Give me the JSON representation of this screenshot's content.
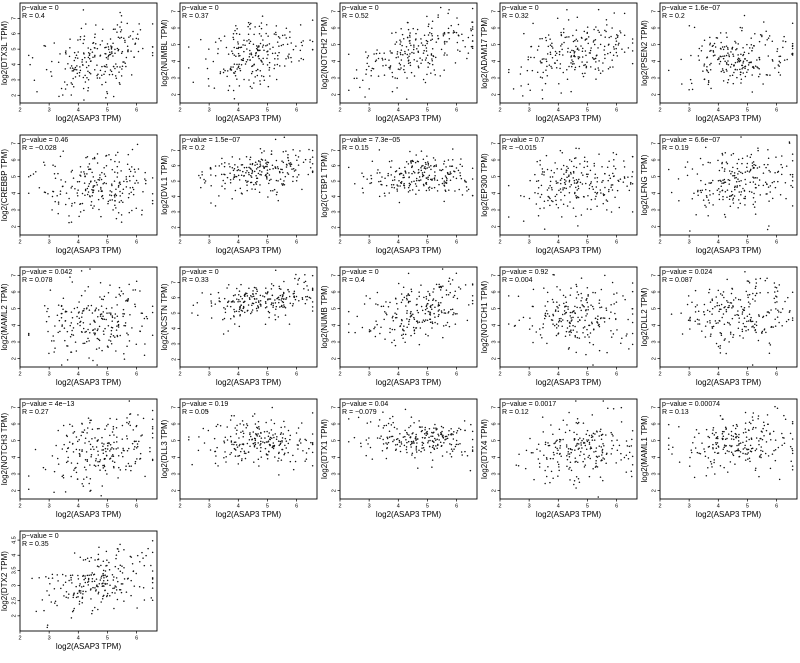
{
  "x_label": "log2(ASAP3 TPM)",
  "x_ticks": [
    "2",
    "3",
    "4",
    "5",
    "6"
  ],
  "chart_data": [
    {
      "type": "scatter",
      "ylabel": "log2(DTX3L TPM)",
      "p_value": "p−value = 0",
      "r": "R = 0.4",
      "coef": 0.4,
      "xlim": [
        2,
        6.7
      ],
      "ylim": [
        1.5,
        8
      ],
      "y_ticks": [
        "2",
        "3",
        "4",
        "5",
        "6",
        "7"
      ],
      "y_center": 4.5,
      "y_sd": 1.2
    },
    {
      "type": "scatter",
      "ylabel": "log2(NUMBL TPM)",
      "p_value": "p−value = 0",
      "r": "R = 0.37",
      "coef": 0.37,
      "xlim": [
        2,
        6.7
      ],
      "ylim": [
        1.5,
        7.5
      ],
      "y_ticks": [
        "2",
        "3",
        "4",
        "5",
        "6",
        "7"
      ],
      "y_center": 4.5,
      "y_sd": 1.0
    },
    {
      "type": "scatter",
      "ylabel": "log2(NOTCH2 TPM)",
      "p_value": "p−value = 0",
      "r": "R = 0.52",
      "coef": 0.52,
      "xlim": [
        2,
        6.7
      ],
      "ylim": [
        1.5,
        7.5
      ],
      "y_ticks": [
        "2",
        "3",
        "4",
        "5",
        "6",
        "7"
      ],
      "y_center": 4.6,
      "y_sd": 1.1
    },
    {
      "type": "scatter",
      "ylabel": "log2(ADAM17 TPM)",
      "p_value": "p−value = 0",
      "r": "R = 0.32",
      "coef": 0.32,
      "xlim": [
        2,
        6.7
      ],
      "ylim": [
        1.5,
        7.5
      ],
      "y_ticks": [
        "2",
        "3",
        "4",
        "5",
        "6",
        "7"
      ],
      "y_center": 4.7,
      "y_sd": 1.0
    },
    {
      "type": "scatter",
      "ylabel": "log2(PSEN2 TPM)",
      "p_value": "p−value = 1.6e−07",
      "r": "R = 0.2",
      "coef": 0.2,
      "xlim": [
        2,
        6.7
      ],
      "ylim": [
        1.5,
        7.5
      ],
      "y_ticks": [
        "2",
        "3",
        "4",
        "5",
        "6",
        "7"
      ],
      "y_center": 4.2,
      "y_sd": 0.9
    },
    {
      "type": "scatter",
      "ylabel": "log2(CREBBP TPM)",
      "p_value": "p−value = 0.46",
      "r": "R = −0.028",
      "coef": -0.028,
      "xlim": [
        2,
        6.7
      ],
      "ylim": [
        1.5,
        7.5
      ],
      "y_ticks": [
        "2",
        "3",
        "4",
        "5",
        "6",
        "7"
      ],
      "y_center": 4.4,
      "y_sd": 1.0
    },
    {
      "type": "scatter",
      "ylabel": "log2(DVL1 TPM)",
      "p_value": "p−value = 1.5e−07",
      "r": "R = 0.2",
      "coef": 0.2,
      "xlim": [
        2,
        6.7
      ],
      "ylim": [
        1.5,
        8
      ],
      "y_ticks": [
        "2",
        "3",
        "4",
        "5",
        "6",
        "7"
      ],
      "y_center": 5.6,
      "y_sd": 0.7
    },
    {
      "type": "scatter",
      "ylabel": "log2(CTBP1 TPM)",
      "p_value": "p−value = 7.3e−05",
      "r": "R = 0.15",
      "coef": 0.15,
      "xlim": [
        2,
        6.7
      ],
      "ylim": [
        1.5,
        8
      ],
      "y_ticks": [
        "2",
        "3",
        "4",
        "5",
        "6",
        "7"
      ],
      "y_center": 5.4,
      "y_sd": 0.7
    },
    {
      "type": "scatter",
      "ylabel": "log2(EP300 TPM)",
      "p_value": "p−value = 0.7",
      "r": "R = −0.015",
      "coef": -0.015,
      "xlim": [
        2,
        6.7
      ],
      "ylim": [
        1.5,
        7.5
      ],
      "y_ticks": [
        "2",
        "3",
        "4",
        "5",
        "6",
        "7"
      ],
      "y_center": 4.6,
      "y_sd": 1.0
    },
    {
      "type": "scatter",
      "ylabel": "log2(LFNG TPM)",
      "p_value": "p−value = 6.6e−07",
      "r": "R = 0.19",
      "coef": 0.19,
      "xlim": [
        2,
        6.7
      ],
      "ylim": [
        1.5,
        7.5
      ],
      "y_ticks": [
        "2",
        "3",
        "4",
        "5",
        "6",
        "7"
      ],
      "y_center": 4.6,
      "y_sd": 1.0
    },
    {
      "type": "scatter",
      "ylabel": "log2(MAML2 TPM)",
      "p_value": "p−value = 0.042",
      "r": "R = 0.078",
      "coef": 0.078,
      "xlim": [
        2,
        6.7
      ],
      "ylim": [
        1.5,
        7.5
      ],
      "y_ticks": [
        "2",
        "3",
        "4",
        "5",
        "6",
        "7"
      ],
      "y_center": 4.3,
      "y_sd": 1.1
    },
    {
      "type": "scatter",
      "ylabel": "log2(NCSTN TPM)",
      "p_value": "p−value = 0",
      "r": "R = 0.33",
      "coef": 0.33,
      "xlim": [
        2,
        6.7
      ],
      "ylim": [
        1.5,
        8
      ],
      "y_ticks": [
        "2",
        "3",
        "4",
        "5",
        "6",
        "7"
      ],
      "y_center": 5.8,
      "y_sd": 0.6
    },
    {
      "type": "scatter",
      "ylabel": "log2(NUMB TPM)",
      "p_value": "p−value = 0",
      "r": "R = 0.4",
      "coef": 0.4,
      "xlim": [
        2,
        6.7
      ],
      "ylim": [
        1.5,
        7.5
      ],
      "y_ticks": [
        "2",
        "3",
        "4",
        "5",
        "6",
        "7"
      ],
      "y_center": 4.9,
      "y_sd": 0.9
    },
    {
      "type": "scatter",
      "ylabel": "log2(NOTCH1 TPM)",
      "p_value": "p−value = 0.92",
      "r": "R = 0.004",
      "coef": 0.004,
      "xlim": [
        2,
        6.7
      ],
      "ylim": [
        1.5,
        7.5
      ],
      "y_ticks": [
        "2",
        "3",
        "4",
        "5",
        "6",
        "7"
      ],
      "y_center": 4.6,
      "y_sd": 1.0
    },
    {
      "type": "scatter",
      "ylabel": "log2(DLL2 TPM)",
      "p_value": "p−value = 0.024",
      "r": "R = 0.087",
      "coef": 0.087,
      "xlim": [
        2,
        6.7
      ],
      "ylim": [
        1.5,
        7.5
      ],
      "y_ticks": [
        "2",
        "3",
        "4",
        "5",
        "6",
        "7"
      ],
      "y_center": 4.8,
      "y_sd": 1.0
    },
    {
      "type": "scatter",
      "ylabel": "log2(NOTCH3 TPM)",
      "p_value": "p−value = 4e−13",
      "r": "R = 0.27",
      "coef": 0.27,
      "xlim": [
        2,
        6.7
      ],
      "ylim": [
        1.5,
        7.5
      ],
      "y_ticks": [
        "2",
        "3",
        "4",
        "5",
        "6",
        "7"
      ],
      "y_center": 4.5,
      "y_sd": 1.1
    },
    {
      "type": "scatter",
      "ylabel": "log2(DLL3 TPM)",
      "p_value": "p−value = 0.19",
      "r": "R = 0.05",
      "coef": 0.05,
      "xlim": [
        2,
        6.7
      ],
      "ylim": [
        1.5,
        7.5
      ],
      "y_ticks": [
        "2",
        "3",
        "4",
        "5",
        "6",
        "7"
      ],
      "y_center": 4.9,
      "y_sd": 0.7
    },
    {
      "type": "scatter",
      "ylabel": "log2(DTX1 TPM)",
      "p_value": "p−value = 0.04",
      "r": "R = −0.079",
      "coef": -0.079,
      "xlim": [
        2,
        6.7
      ],
      "ylim": [
        1.5,
        7.5
      ],
      "y_ticks": [
        "2",
        "3",
        "4",
        "5",
        "6",
        "7"
      ],
      "y_center": 5.1,
      "y_sd": 0.6
    },
    {
      "type": "scatter",
      "ylabel": "log2(DTX4 TPM)",
      "p_value": "p−value = 0.0017",
      "r": "R = 0.12",
      "coef": 0.12,
      "xlim": [
        2,
        6.7
      ],
      "ylim": [
        1.5,
        7.5
      ],
      "y_ticks": [
        "2",
        "3",
        "4",
        "5",
        "6",
        "7"
      ],
      "y_center": 4.5,
      "y_sd": 1.0
    },
    {
      "type": "scatter",
      "ylabel": "log2(MAML1 TPM)",
      "p_value": "p−value = 0.00074",
      "r": "R = 0.13",
      "coef": 0.13,
      "xlim": [
        2,
        6.7
      ],
      "ylim": [
        1.5,
        7.5
      ],
      "y_ticks": [
        "2",
        "3",
        "4",
        "5",
        "6",
        "7"
      ],
      "y_center": 4.9,
      "y_sd": 0.9
    },
    {
      "type": "scatter",
      "ylabel": "log2(DTX2 TPM)",
      "p_value": "p−value = 0",
      "r": "R = 0.35",
      "coef": 0.35,
      "xlim": [
        2,
        6.7
      ],
      "ylim": [
        1.5,
        4.8
      ],
      "y_ticks": [
        "2",
        "2.5",
        "3",
        "3.5",
        "4",
        "4.5"
      ],
      "y_center": 3.1,
      "y_sd": 0.5
    }
  ]
}
